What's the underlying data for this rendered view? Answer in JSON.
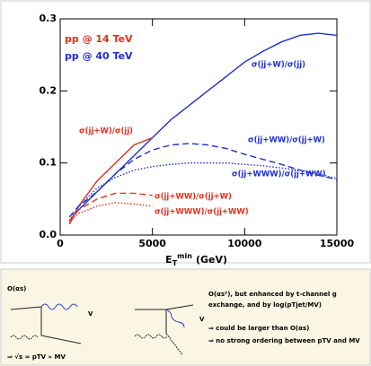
{
  "chart_data": {
    "type": "line",
    "legend_texts": [
      {
        "text": "pp @ 14 TeV",
        "color": "#e0301e"
      },
      {
        "text": "pp @ 40 TeV",
        "color": "#1f2fd0"
      }
    ],
    "x_label": {
      "main": "E",
      "sub": "T",
      "sup": "min",
      "unit": "(GeV)"
    },
    "x": [
      500,
      1000,
      2000,
      3000,
      4000,
      5000,
      6000,
      7000,
      8000,
      9000,
      10000,
      11000,
      12000,
      13000,
      14000,
      15000
    ],
    "series": [
      {
        "name": "σ(jj+W)/σ(jj)",
        "color": "#1f2fd0",
        "dash": "solid",
        "values": [
          0.02,
          0.035,
          0.06,
          0.085,
          0.11,
          0.135,
          0.16,
          0.18,
          0.2,
          0.22,
          0.24,
          0.255,
          0.268,
          0.277,
          0.28,
          0.277
        ]
      },
      {
        "name": "σ(jj+W)/σ(jj)",
        "color": "#e0301e",
        "dash": "solid",
        "values": [
          0.015,
          0.04,
          0.075,
          0.1,
          0.125,
          0.135,
          null,
          null,
          null,
          null,
          null,
          null,
          null,
          null,
          null,
          null
        ]
      },
      {
        "name": "σ(jj+WW)/σ(jj+W)",
        "color": "#1f2fd0",
        "dash": "dashed",
        "values": [
          0.025,
          0.04,
          0.06,
          0.085,
          0.105,
          0.118,
          0.125,
          0.127,
          0.125,
          0.12,
          0.112,
          0.105,
          0.098,
          0.09,
          0.083,
          0.077
        ]
      },
      {
        "name": "σ(jj+WWW)/σ(jj+WW)",
        "color": "#1f2fd0",
        "dash": "dotted",
        "values": [
          0.02,
          0.04,
          0.065,
          0.08,
          0.09,
          0.095,
          0.098,
          0.1,
          0.1,
          0.1,
          0.098,
          0.096,
          0.093,
          0.09,
          0.085,
          0.078
        ]
      },
      {
        "name": "σ(jj+WW)/σ(jj+W)",
        "color": "#e0301e",
        "dash": "dashed",
        "values": [
          0.02,
          0.035,
          0.05,
          0.058,
          0.058,
          0.055,
          null,
          null,
          null,
          null,
          null,
          null,
          null,
          null,
          null,
          null
        ]
      },
      {
        "name": "σ(jj+WWW)/σ(jj+WW)",
        "color": "#e0301e",
        "dash": "dotted",
        "values": [
          0.018,
          0.03,
          0.04,
          0.045,
          0.043,
          0.04,
          null,
          null,
          null,
          null,
          null,
          null,
          null,
          null,
          null,
          null
        ]
      }
    ],
    "xlim": [
      0,
      15000
    ],
    "xticks": [
      0,
      5000,
      10000,
      15000
    ],
    "ylim": [
      0,
      0.3
    ],
    "yticks": [
      {
        "value": 0,
        "label": "0.0"
      },
      0.1,
      0.2,
      0.3
    ]
  },
  "diagram": {
    "left": {
      "order": "O(αs)",
      "boson": "V",
      "relation": "⇒ √s ≈ pTV » MV"
    },
    "middle": {
      "boson": "V"
    },
    "right": {
      "order": "O(αs²), but enhanced by t-channel g",
      "line2": "exchange, and by log(pTjet/MV)",
      "point1": "⇒ could be larger than O(αs)",
      "point2": "⇒ no strong ordering between pTV and MV"
    }
  }
}
